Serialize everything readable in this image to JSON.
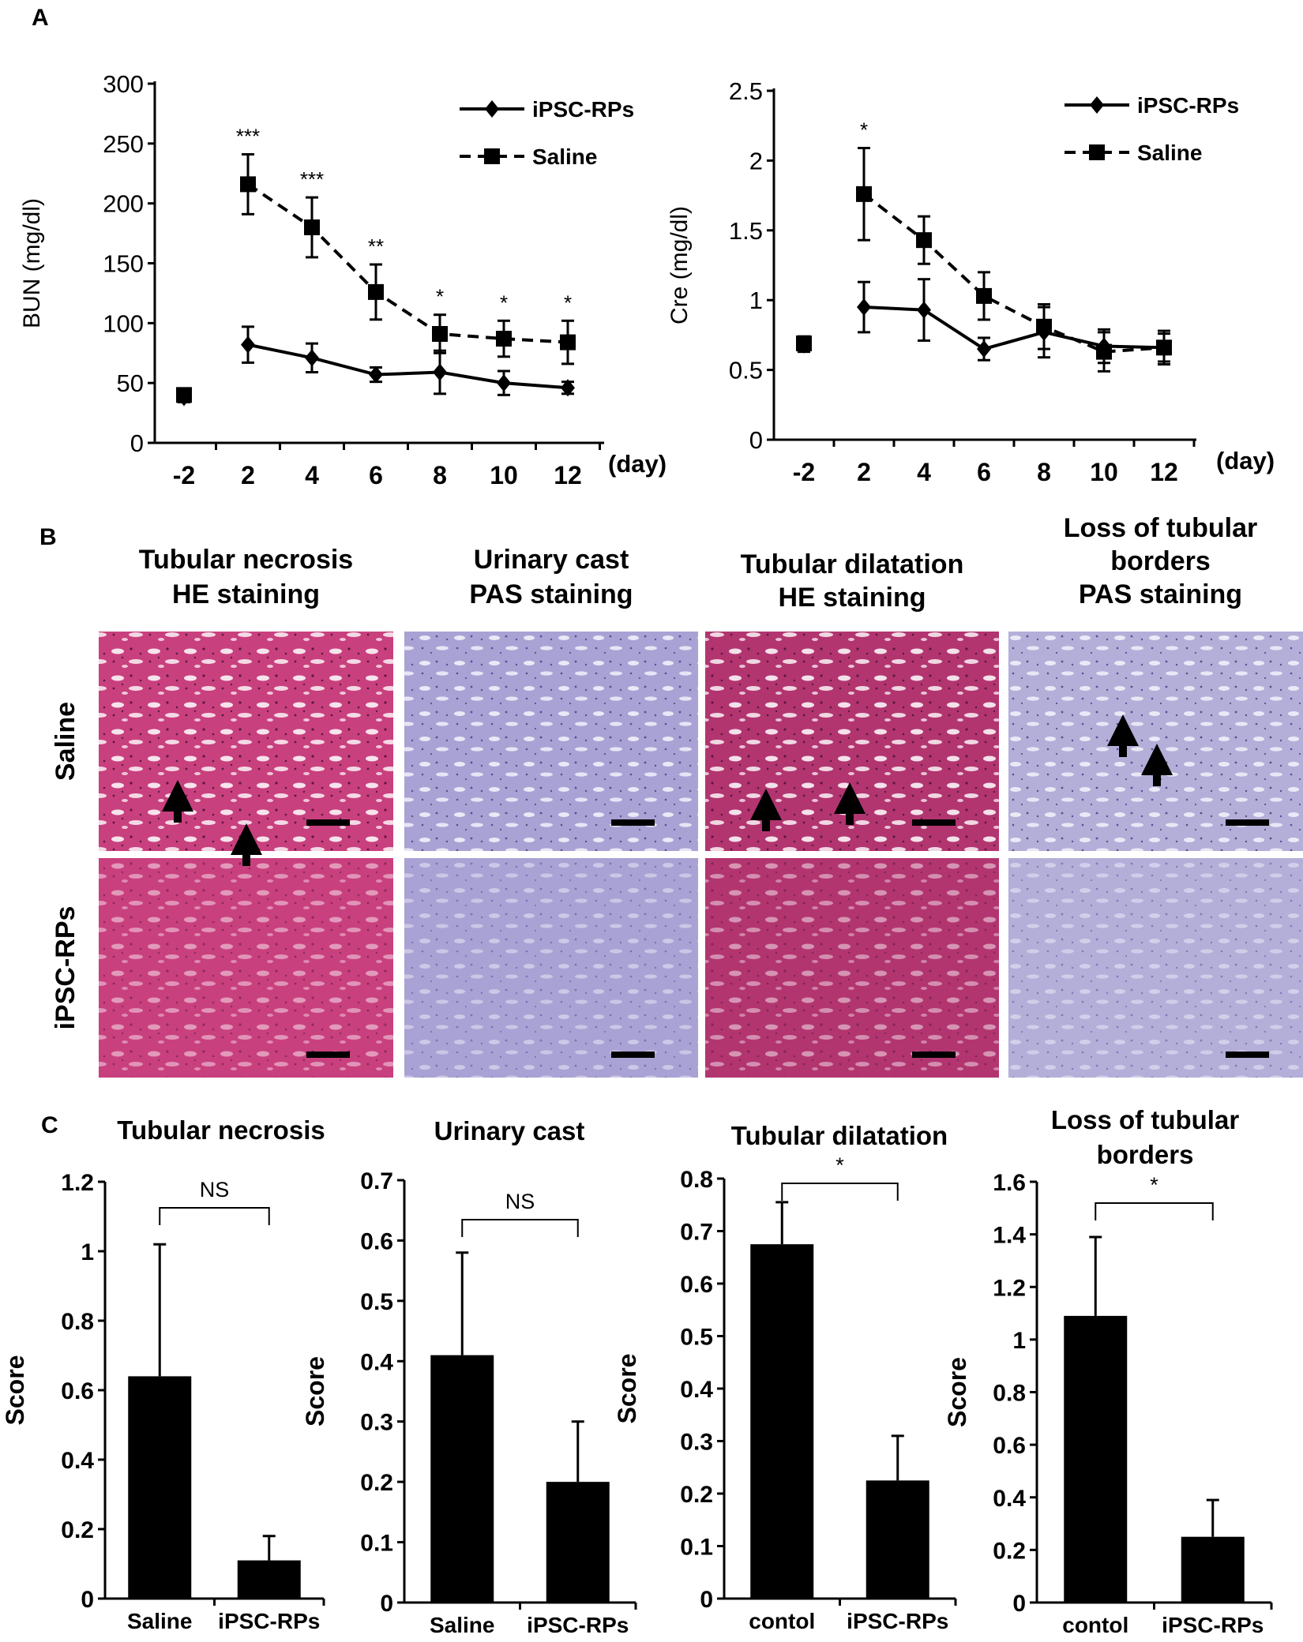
{
  "panels": {
    "a": "A",
    "b": "B",
    "c": "C"
  },
  "chart_data": [
    {
      "id": "bun",
      "type": "line",
      "ylabel": "BUN (mg/dl)",
      "xunit": "(day)",
      "categories": [
        "-2",
        "2",
        "4",
        "6",
        "8",
        "10",
        "12"
      ],
      "ylim": [
        0,
        300
      ],
      "yticks": [
        "0",
        "50",
        "100",
        "150",
        "200",
        "250",
        "300"
      ],
      "series": [
        {
          "name": "iPSC-RPs",
          "style": "solid",
          "marker": "diamond",
          "values": [
            38,
            82,
            71,
            57,
            59,
            50,
            46
          ],
          "err": [
            4,
            15,
            12,
            6,
            18,
            10,
            5
          ]
        },
        {
          "name": "Saline",
          "style": "dashed",
          "marker": "square",
          "values": [
            40,
            216,
            180,
            126,
            91,
            87,
            84
          ],
          "err": [
            5,
            25,
            25,
            23,
            16,
            15,
            18
          ]
        }
      ],
      "annotations": [
        "",
        "***",
        "***",
        "**",
        "*",
        "*",
        "*"
      ]
    },
    {
      "id": "cre",
      "type": "line",
      "ylabel": "Cre (mg/dl)",
      "xunit": "(day)",
      "categories": [
        "-2",
        "2",
        "4",
        "6",
        "8",
        "10",
        "12"
      ],
      "ylim": [
        0,
        2.5
      ],
      "yticks": [
        "0",
        "0.5",
        "1",
        "1.5",
        "2",
        "2.5"
      ],
      "series": [
        {
          "name": "iPSC-RPs",
          "style": "solid",
          "marker": "diamond",
          "values": [
            0.68,
            0.95,
            0.93,
            0.65,
            0.77,
            0.67,
            0.66
          ],
          "err": [
            0.05,
            0.18,
            0.22,
            0.08,
            0.18,
            0.12,
            0.1
          ]
        },
        {
          "name": "Saline",
          "style": "dashed",
          "marker": "square",
          "values": [
            0.69,
            1.76,
            1.43,
            1.03,
            0.81,
            0.63,
            0.66
          ],
          "err": [
            0.05,
            0.33,
            0.17,
            0.17,
            0.16,
            0.14,
            0.12
          ]
        }
      ],
      "annotations": [
        "",
        "*",
        "",
        "",
        "",
        "",
        ""
      ]
    },
    {
      "id": "c1",
      "type": "bar",
      "title": [
        "Tubular necrosis"
      ],
      "ylabel": "Score",
      "categories": [
        "Saline",
        "iPSC-RPs"
      ],
      "values": [
        0.64,
        0.11
      ],
      "err": [
        0.38,
        0.07
      ],
      "ylim": [
        0,
        1.2
      ],
      "yticks": [
        "0",
        "0.2",
        "0.4",
        "0.6",
        "0.8",
        "1",
        "1.2"
      ],
      "significance": "NS"
    },
    {
      "id": "c2",
      "type": "bar",
      "title": [
        "Urinary cast"
      ],
      "ylabel": "Score",
      "categories": [
        "Saline",
        "iPSC-RPs"
      ],
      "values": [
        0.41,
        0.2
      ],
      "err": [
        0.17,
        0.1
      ],
      "ylim": [
        0,
        0.7
      ],
      "yticks": [
        "0",
        "0.1",
        "0.2",
        "0.3",
        "0.4",
        "0.5",
        "0.6",
        "0.7"
      ],
      "significance": "NS"
    },
    {
      "id": "c3",
      "type": "bar",
      "title": [
        "Tubular dilatation"
      ],
      "ylabel": "Score",
      "categories": [
        "contol",
        "iPSC-RPs"
      ],
      "values": [
        0.675,
        0.225
      ],
      "err": [
        0.08,
        0.085
      ],
      "ylim": [
        0,
        0.8
      ],
      "yticks": [
        "0",
        "0.1",
        "0.2",
        "0.3",
        "0.4",
        "0.5",
        "0.6",
        "0.7",
        "0.8"
      ],
      "significance": "*"
    },
    {
      "id": "c4",
      "type": "bar",
      "title": [
        "Loss of tubular",
        "borders"
      ],
      "ylabel": "Score",
      "categories": [
        "contol",
        "iPSC-RPs"
      ],
      "values": [
        1.09,
        0.25
      ],
      "err": [
        0.3,
        0.14
      ],
      "ylim": [
        0,
        1.6
      ],
      "yticks": [
        "0",
        "0.2",
        "0.4",
        "0.6",
        "0.8",
        "1",
        "1.2",
        "1.4",
        "1.6"
      ],
      "significance": "*"
    }
  ],
  "histology": {
    "columns": [
      {
        "title": [
          "Tubular necrosis",
          "HE staining"
        ],
        "stain": "HE",
        "color": "#c9407e"
      },
      {
        "title": [
          "Urinary cast",
          "PAS staining"
        ],
        "stain": "PAS",
        "color": "#a9a2d4"
      },
      {
        "title": [
          "Tubular dilatation",
          "HE staining"
        ],
        "stain": "HE",
        "color": "#b23570"
      },
      {
        "title": [
          "Loss of tubular",
          "borders",
          "PAS staining"
        ],
        "stain": "PAS",
        "color": "#b3afd9"
      }
    ],
    "rows": [
      "Saline",
      "iPSC-RPs"
    ]
  }
}
